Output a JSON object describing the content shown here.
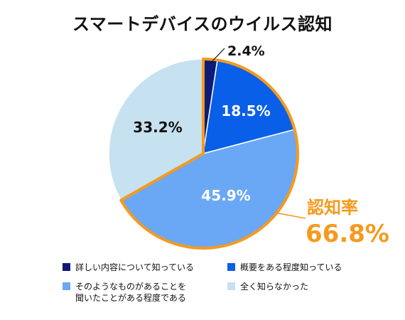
{
  "title": "スマートデバイスのウイルス認知",
  "chart_data": {
    "type": "pie",
    "categories": [
      "詳しい内容について知っている",
      "概要をある程度知っている",
      "そのようなものがあることを\n聞いたことがある程度である",
      "全く知らなかった"
    ],
    "values": [
      2.4,
      18.5,
      45.9,
      33.2
    ],
    "value_labels": [
      "2.4%",
      "18.5%",
      "45.9%",
      "33.2%"
    ],
    "colors": [
      "#0d1a7a",
      "#0a5fe8",
      "#6aa8f5",
      "#c6e1ef"
    ],
    "label_colors": [
      "#111111",
      "#ffffff",
      "#ffffff",
      "#111111"
    ],
    "start": "top",
    "direction": "clockwise",
    "annotation": {
      "label": "認知率",
      "value": "66.8%",
      "color": "#f59a1e",
      "covers": [
        0,
        1,
        2
      ]
    },
    "legend_position": "bottom"
  }
}
